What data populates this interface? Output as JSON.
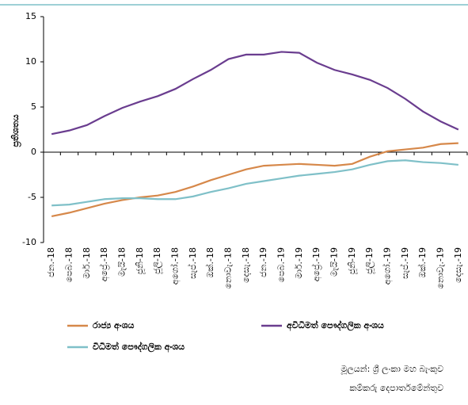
{
  "chart_data": {
    "type": "line",
    "y_label": "ප්‍රතිශතය",
    "categories": [
      "ජන.-18",
      "පෙබ.-18",
      "මාර්.-18",
      "අප්‍රේ.-18",
      "මැයි-18",
      "ජූනි-18",
      "ජූලි-18",
      "අගෝ.-18",
      "සැප්.-18",
      "ඔක්.-18",
      "නොවැ.-18",
      "දෙසැ.-18",
      "ජන.-19",
      "පෙබ.-19",
      "මාර්.-19",
      "අප්‍රේ.-19",
      "මැයි-19",
      "ජූනි-19",
      "ජූලි-19",
      "අගෝ.-19",
      "සැප්.-19",
      "ඔක්.-19",
      "නොවැ.-19",
      "දෙසැ.-19"
    ],
    "series": [
      {
        "name": "රාජ්‍ය අංශය",
        "color": "#d6884a",
        "values": [
          -7.1,
          -6.7,
          -6.2,
          -5.7,
          -5.3,
          -5.0,
          -4.8,
          -4.4,
          -3.8,
          -3.1,
          -2.5,
          -1.9,
          -1.5,
          -1.4,
          -1.3,
          -1.4,
          -1.5,
          -1.3,
          -0.5,
          0.1,
          0.3,
          0.5,
          0.9,
          1.0
        ]
      },
      {
        "name": "අවිධිමත් පෞද්ගලික අංශය",
        "color": "#6a3d8f",
        "values": [
          2.0,
          2.4,
          3.0,
          4.0,
          4.9,
          5.6,
          6.2,
          7.0,
          8.1,
          9.1,
          10.3,
          10.8,
          10.8,
          11.1,
          11.0,
          9.9,
          9.1,
          8.6,
          8.0,
          7.1,
          5.9,
          4.5,
          3.4,
          2.5
        ]
      },
      {
        "name": "විධිමත් පෞද්ගලික අංශය",
        "color": "#7fc0c8",
        "values": [
          -5.9,
          -5.8,
          -5.5,
          -5.2,
          -5.1,
          -5.1,
          -5.2,
          -5.2,
          -4.9,
          -4.4,
          -4.0,
          -3.5,
          -3.2,
          -2.9,
          -2.6,
          -2.4,
          -2.2,
          -1.9,
          -1.4,
          -1.0,
          -0.9,
          -1.1,
          -1.2,
          -1.4
        ]
      }
    ],
    "ylim": [
      -10,
      15
    ],
    "yticks": [
      -10,
      -5,
      0,
      5,
      10,
      15
    ],
    "source": [
      "මූලයන්: ශ්‍රී ලංකා මහ බැංකුව",
      "කම්කරු දෙපාර්තමේන්තුව"
    ]
  }
}
